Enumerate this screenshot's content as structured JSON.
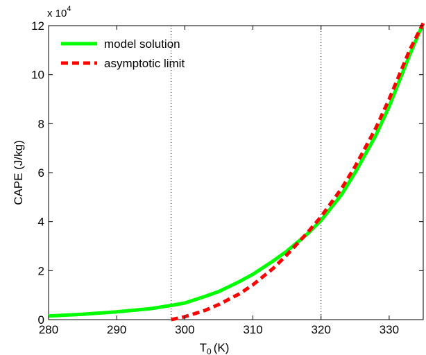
{
  "chart_data": {
    "type": "line",
    "xlabel": "T",
    "xlabel_sub": "0",
    "xlabel_unit": "(K)",
    "ylabel": "CAPE (J/kg)",
    "y_multiplier_base": "x 10",
    "y_multiplier_exp": "4",
    "xlim": [
      280,
      335
    ],
    "ylim": [
      0,
      12
    ],
    "xticks": [
      280,
      290,
      300,
      310,
      320,
      330
    ],
    "yticks": [
      0,
      2,
      4,
      6,
      8,
      10,
      12
    ],
    "vlines": [
      298,
      320
    ],
    "legend_position": "top-left",
    "series": [
      {
        "name": "model solution",
        "color": "#00ff00",
        "style": "solid",
        "x": [
          280,
          285,
          290,
          295,
          298,
          300,
          303,
          305,
          308,
          310,
          313,
          315,
          318,
          320,
          323,
          325,
          328,
          330,
          333,
          335
        ],
        "y": [
          0.15,
          0.22,
          0.32,
          0.45,
          0.58,
          0.68,
          0.95,
          1.15,
          1.55,
          1.85,
          2.4,
          2.8,
          3.5,
          4.05,
          5.1,
          6.0,
          7.5,
          8.7,
          10.8,
          12.1
        ]
      },
      {
        "name": "asymptotic limit",
        "color": "#ff0000",
        "style": "dashed",
        "x": [
          298,
          300,
          303,
          305,
          308,
          310,
          313,
          315,
          318,
          320,
          323,
          325,
          328,
          330,
          333,
          335
        ],
        "y": [
          0.0,
          0.12,
          0.38,
          0.62,
          1.05,
          1.42,
          2.1,
          2.65,
          3.55,
          4.2,
          5.35,
          6.25,
          7.8,
          9.0,
          11.0,
          12.1
        ]
      }
    ]
  }
}
